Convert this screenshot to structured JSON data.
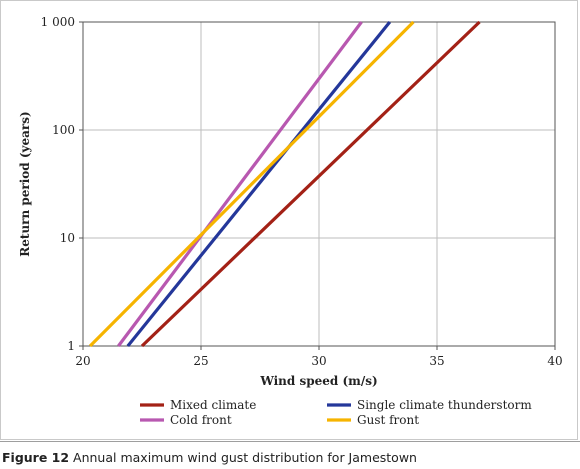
{
  "chart_data": {
    "type": "line",
    "title": "",
    "xlabel": "Wind speed (m/s)",
    "ylabel": "Return period (years)",
    "xlim": [
      20,
      40
    ],
    "ylim": [
      1,
      1000
    ],
    "y_scale": "log",
    "x_ticks": [
      20,
      25,
      30,
      35,
      40
    ],
    "x_tick_labels": [
      "20",
      "25",
      "30",
      "35",
      "40"
    ],
    "y_ticks": [
      1,
      10,
      100,
      1000
    ],
    "y_tick_labels": [
      "1",
      "10",
      "100",
      "1 000"
    ],
    "grid": true,
    "legend_position": "bottom",
    "series": [
      {
        "name": "Mixed climate",
        "color": "#a32116",
        "x": [
          22.5,
          36.8
        ],
        "y": [
          1,
          1000
        ]
      },
      {
        "name": "Single climate thunderstorm",
        "color": "#24379a",
        "x": [
          21.9,
          33.0
        ],
        "y": [
          1,
          1000
        ]
      },
      {
        "name": "Cold front",
        "color": "#b858b0",
        "x": [
          21.5,
          31.8
        ],
        "y": [
          1,
          1000
        ]
      },
      {
        "name": "Gust front",
        "color": "#f6b400",
        "x": [
          20.3,
          34.0
        ],
        "y": [
          1,
          1000
        ]
      }
    ]
  },
  "caption": {
    "label": "Figure 12",
    "text": " Annual maximum wind gust distribution for Jamestown"
  }
}
